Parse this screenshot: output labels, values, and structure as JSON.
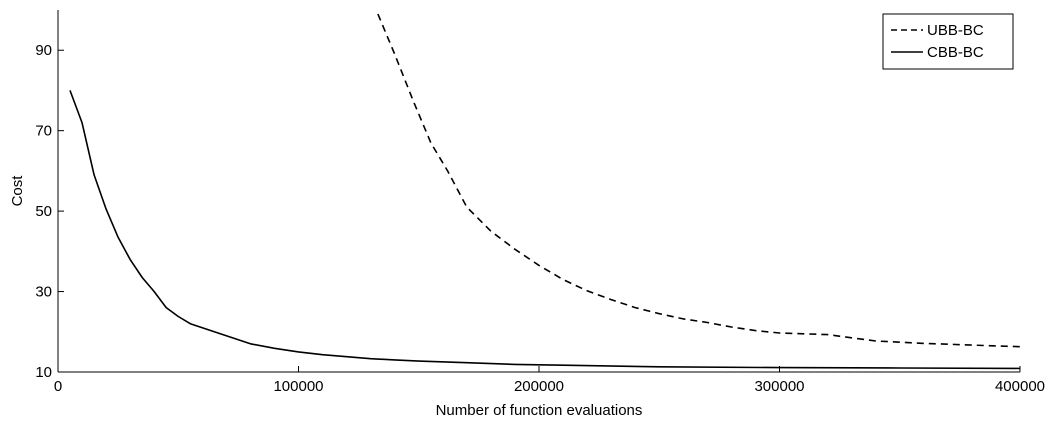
{
  "chart_data": {
    "type": "line",
    "xlabel": "Number of function evaluations",
    "ylabel": "Cost",
    "xlim": [
      0,
      400000
    ],
    "ylim": [
      10,
      100
    ],
    "xticks": [
      0,
      100000,
      200000,
      300000,
      400000
    ],
    "xtick_labels": [
      "0",
      "100000",
      "200000",
      "300000",
      "400000"
    ],
    "yticks": [
      10,
      30,
      50,
      70,
      90
    ],
    "ytick_labels": [
      "10",
      "30",
      "50",
      "70",
      "90"
    ],
    "grid": false,
    "legend_position": "top-right",
    "series": [
      {
        "name": "UBB-BC",
        "style": "dashed",
        "color": "#000000",
        "x": [
          133000,
          140000,
          148000,
          155000,
          162000,
          170000,
          180000,
          190000,
          200000,
          210000,
          220000,
          230000,
          240000,
          250000,
          260000,
          270000,
          280000,
          290000,
          300000,
          310000,
          320000,
          330000,
          340000,
          350000,
          360000,
          370000,
          380000,
          390000,
          400000
        ],
        "y": [
          99,
          89,
          77,
          67,
          60,
          51,
          45,
          40.5,
          36.5,
          33,
          30.2,
          28,
          26,
          24.5,
          23.2,
          22.3,
          21.2,
          20.3,
          19.7,
          19.5,
          19.3,
          18.5,
          17.7,
          17.4,
          17.1,
          16.9,
          16.7,
          16.5,
          16.3
        ]
      },
      {
        "name": "CBB-BC",
        "style": "solid",
        "color": "#000000",
        "x": [
          5000,
          10000,
          15000,
          20000,
          25000,
          30000,
          35000,
          40000,
          45000,
          50000,
          55000,
          60000,
          70000,
          80000,
          90000,
          100000,
          110000,
          120000,
          130000,
          140000,
          150000,
          170000,
          190000,
          210000,
          250000,
          300000,
          350000,
          400000
        ],
        "y": [
          80,
          72,
          59,
          50.5,
          43.5,
          38,
          33.5,
          30,
          26,
          23.8,
          22,
          21,
          19,
          17,
          15.9,
          15,
          14.3,
          13.8,
          13.3,
          13,
          12.7,
          12.3,
          11.9,
          11.7,
          11.3,
          11.1,
          11.0,
          10.9
        ]
      }
    ]
  }
}
